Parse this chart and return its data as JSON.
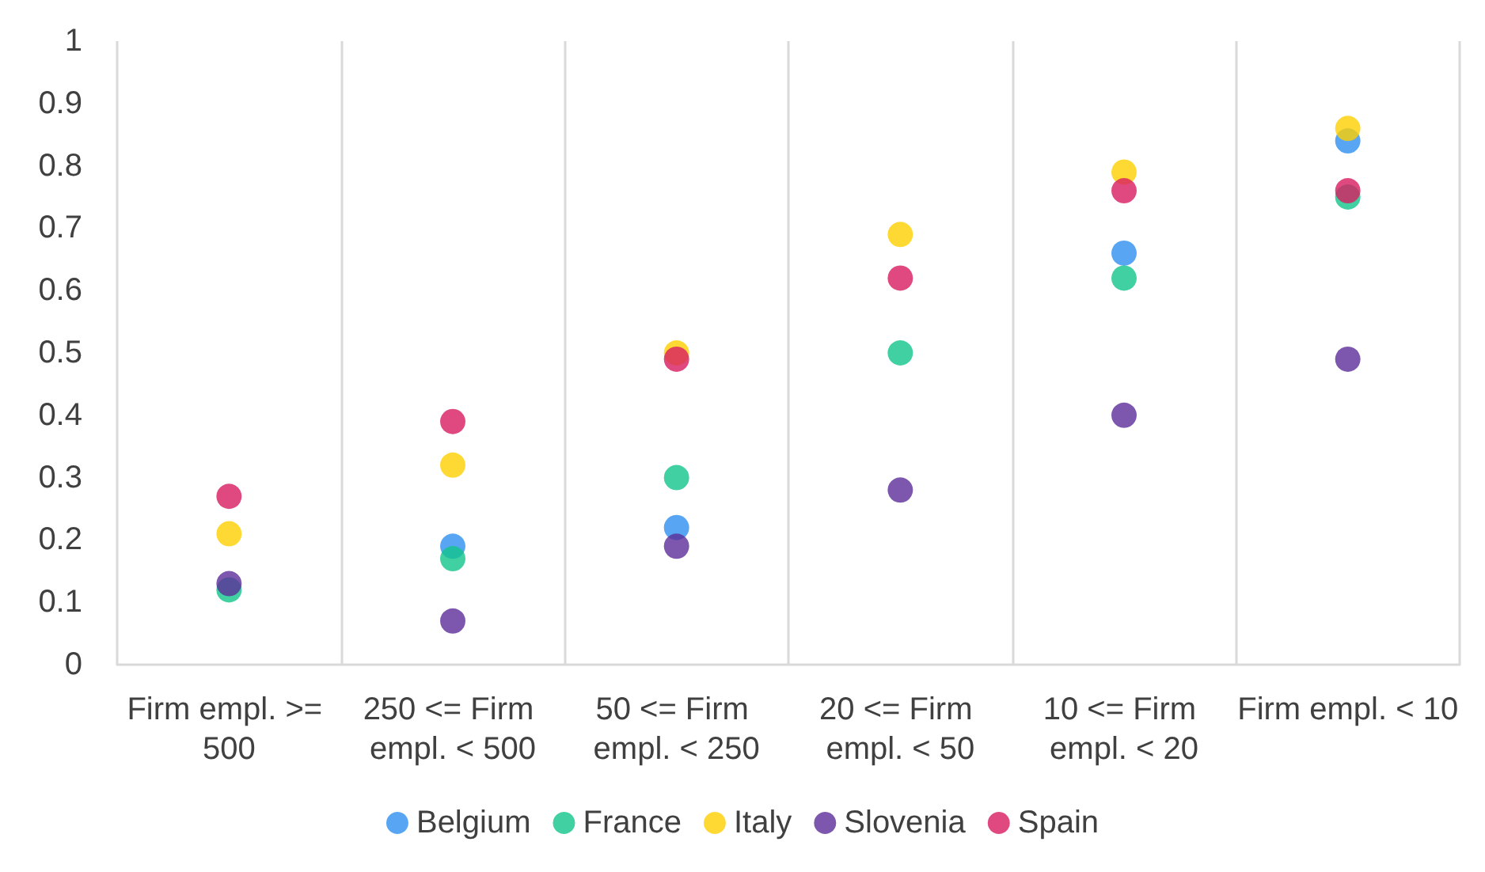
{
  "chart_data": {
    "type": "scatter",
    "categories": [
      "Firm empl. >= 500",
      "250 <= Firm empl. < 500",
      "50 <= Firm empl. < 250",
      "20 <= Firm empl. < 50",
      "10 <= Firm empl. < 20",
      "Firm empl. < 10"
    ],
    "series": [
      {
        "name": "Belgium",
        "color": "#2e8ff0",
        "values": [
          null,
          0.19,
          0.22,
          null,
          0.66,
          0.84
        ]
      },
      {
        "name": "France",
        "color": "#12c48b",
        "values": [
          0.12,
          0.17,
          0.3,
          0.5,
          0.62,
          0.75
        ]
      },
      {
        "name": "Italy",
        "color": "#ffd000",
        "values": [
          0.21,
          0.32,
          0.5,
          0.69,
          0.79,
          0.86
        ]
      },
      {
        "name": "Slovenia",
        "color": "#5b2d99",
        "values": [
          0.13,
          0.07,
          0.19,
          0.28,
          0.4,
          0.49
        ]
      },
      {
        "name": "Spain",
        "color": "#d81b60",
        "values": [
          0.27,
          0.39,
          0.49,
          0.62,
          0.76,
          0.76
        ]
      }
    ],
    "ylim": [
      0,
      1
    ],
    "yticks": [
      0,
      0.1,
      0.2,
      0.3,
      0.4,
      0.5,
      0.6,
      0.7,
      0.8,
      0.9,
      1
    ],
    "grid": "x",
    "legend": "bottom",
    "marker": "circle"
  }
}
